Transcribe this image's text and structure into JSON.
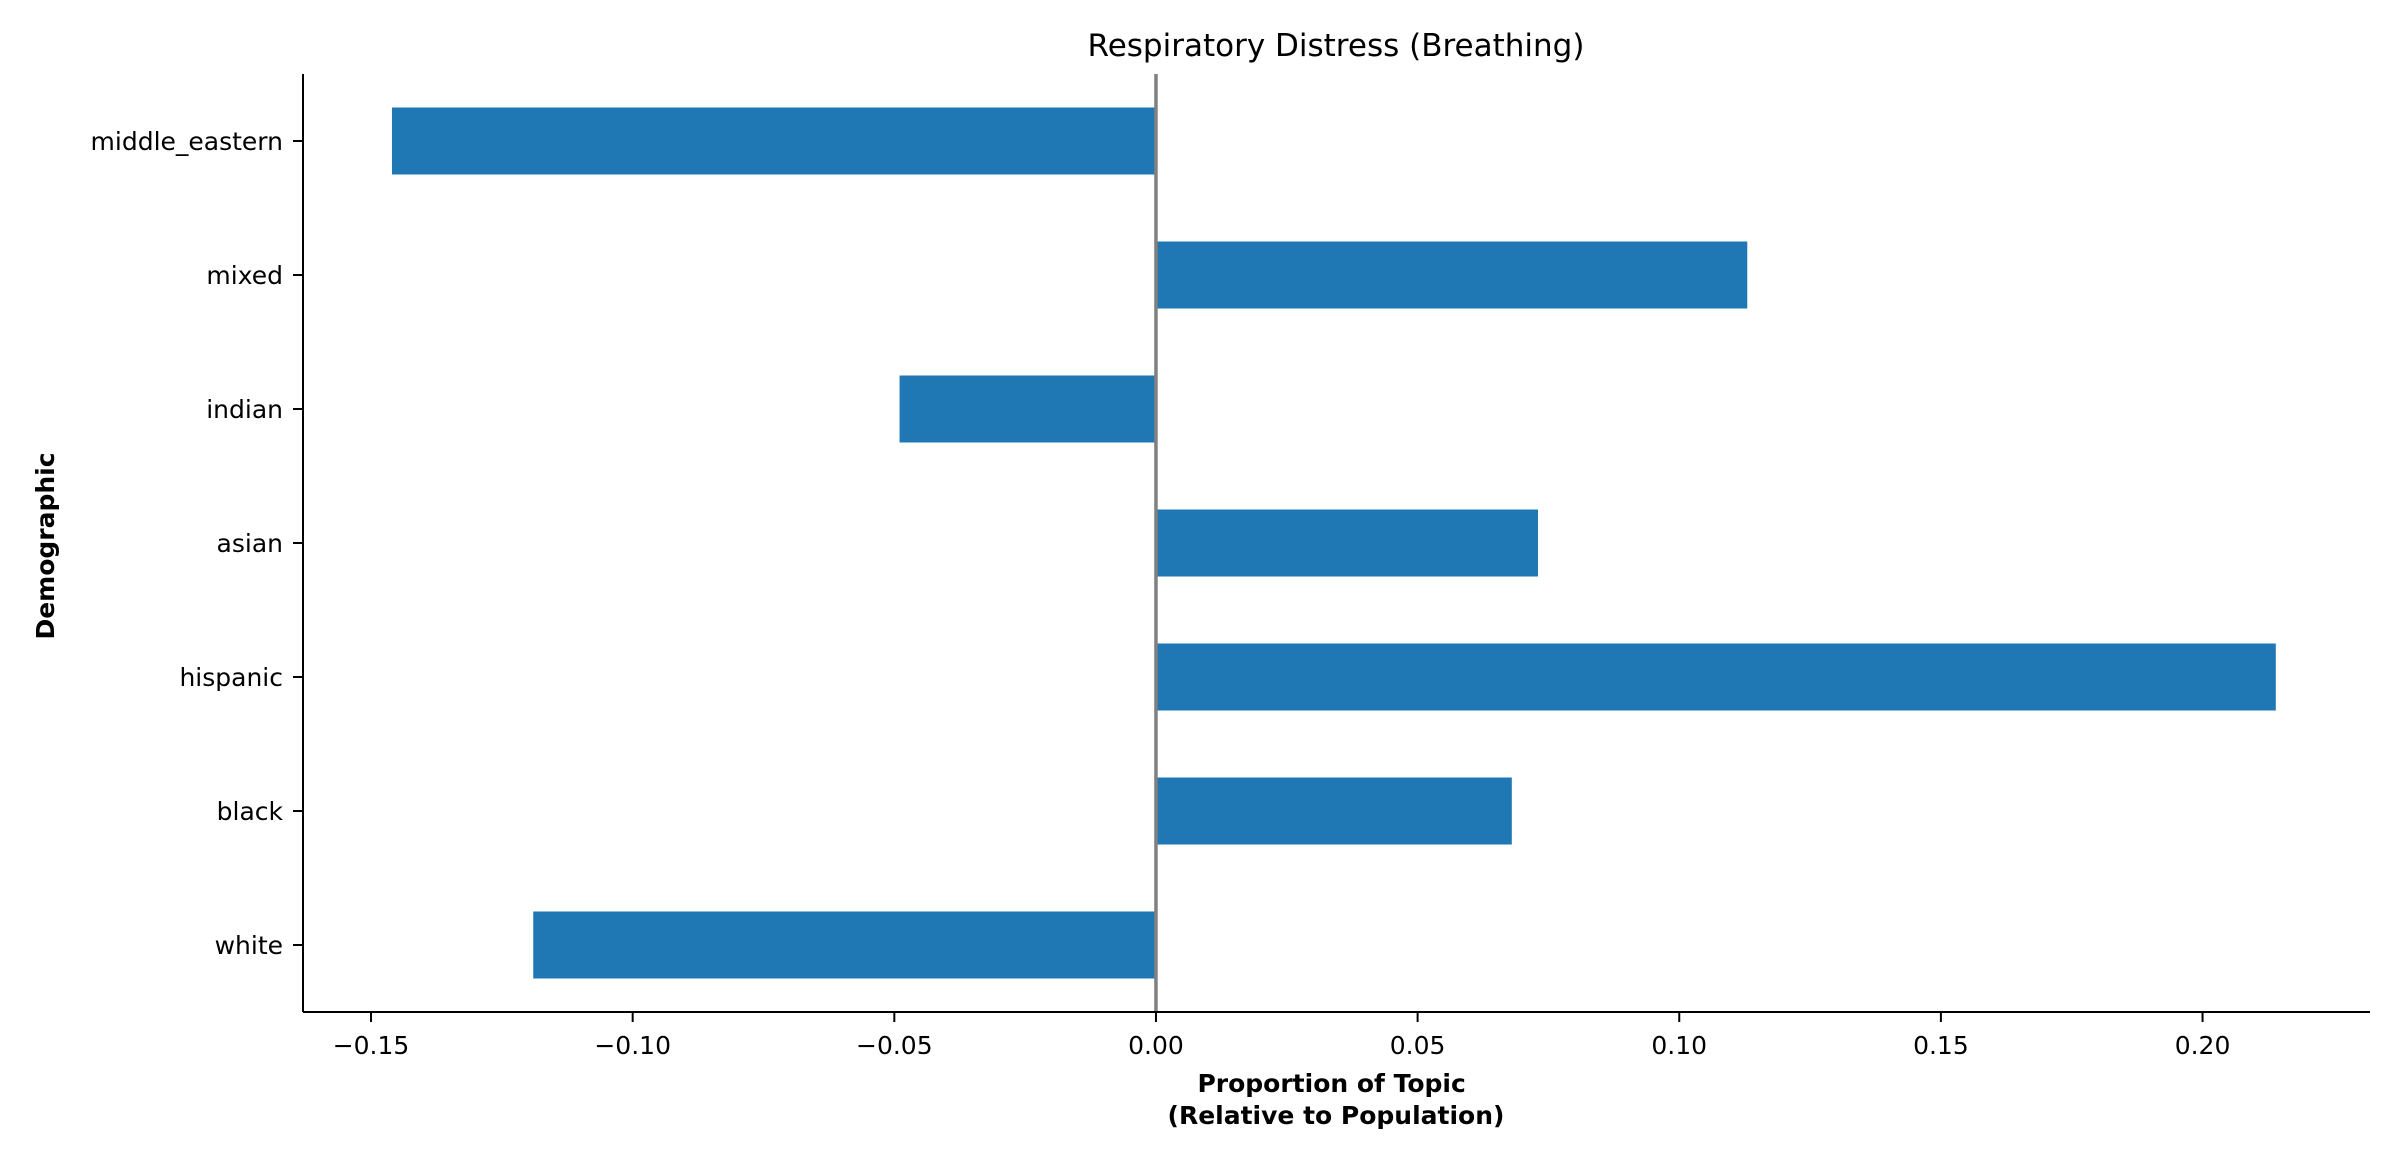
{
  "chart_data": {
    "type": "bar",
    "orientation": "horizontal",
    "title": "Respiratory Distress (Breathing)",
    "xlabel_lines": [
      "Proportion of Topic",
      "(Relative to Population)"
    ],
    "ylabel": "Demographic",
    "categories": [
      "white",
      "black",
      "hispanic",
      "asian",
      "indian",
      "mixed",
      "middle_eastern"
    ],
    "values": [
      -0.119,
      0.068,
      0.214,
      0.073,
      -0.049,
      0.113,
      -0.146
    ],
    "xlim": [
      -0.163,
      0.232
    ],
    "xticks": [
      -0.15,
      -0.1,
      -0.05,
      0.0,
      0.05,
      0.1,
      0.15,
      0.2
    ],
    "xtick_labels": [
      "−0.15",
      "−0.10",
      "−0.05",
      "0.00",
      "0.05",
      "0.10",
      "0.15",
      "0.20"
    ],
    "bar_color": "#1f77b4",
    "zero_line_color": "#808080",
    "grid": false,
    "legend": "none"
  }
}
